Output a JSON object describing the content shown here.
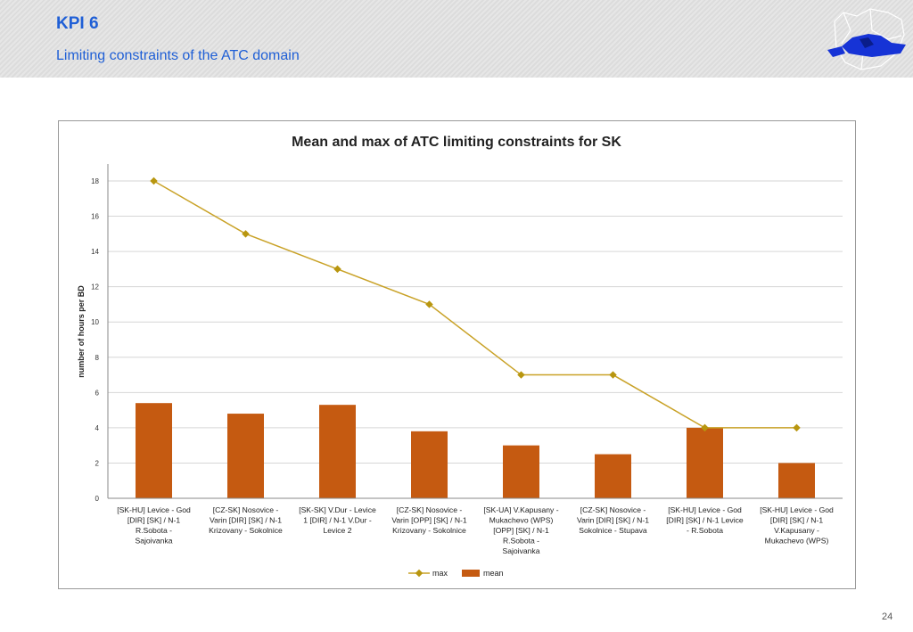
{
  "header": {
    "title": "KPI 6",
    "subtitle": "Limiting constraints of the ATC domain"
  },
  "footer": {
    "page_number": "24"
  },
  "colors": {
    "title_blue": "#1f5fd6",
    "max_line": "#c9a227",
    "max_marker": "#b8960f",
    "mean_bar": "#c55a11"
  },
  "chart_data": {
    "type": "bar",
    "title": "Mean and max of ATC limiting constraints for SK",
    "xlabel": "",
    "ylabel": "number of hours per BD",
    "ylim": [
      0,
      18
    ],
    "yticks": [
      0,
      2,
      4,
      6,
      8,
      10,
      12,
      14,
      16,
      18
    ],
    "grid": true,
    "legend_position": "bottom",
    "categories": [
      [
        "[SK-HU] Levice - God",
        "[DIR] [SK] / N-1",
        "R.Sobota -",
        "Sajoivanka"
      ],
      [
        "[CZ-SK] Nosovice -",
        "Varin [DIR] [SK] / N-1",
        "Krizovany - Sokolnice"
      ],
      [
        "[SK-SK] V.Dur - Levice",
        "1 [DIR] / N-1 V.Dur -",
        "Levice 2"
      ],
      [
        "[CZ-SK] Nosovice -",
        "Varin [OPP] [SK] / N-1",
        "Krizovany - Sokolnice"
      ],
      [
        "[SK-UA] V.Kapusany -",
        "Mukachevo (WPS)",
        "[OPP] [SK] / N-1",
        "R.Sobota -",
        "Sajoivanka"
      ],
      [
        "[CZ-SK] Nosovice -",
        "Varin [DIR] [SK] / N-1",
        "Sokolnice - Stupava"
      ],
      [
        "[SK-HU] Levice - God",
        "[DIR] [SK] / N-1 Levice",
        "- R.Sobota"
      ],
      [
        "[SK-HU] Levice - God",
        "[DIR] [SK] / N-1",
        "V.Kapusany -",
        "Mukachevo (WPS)"
      ]
    ],
    "series": [
      {
        "name": "max",
        "type": "line",
        "values": [
          18,
          15,
          13,
          11,
          7,
          7,
          4,
          4
        ]
      },
      {
        "name": "mean",
        "type": "bar",
        "values": [
          5.4,
          4.8,
          5.3,
          3.8,
          3.0,
          2.5,
          4.0,
          2.0
        ]
      }
    ]
  }
}
